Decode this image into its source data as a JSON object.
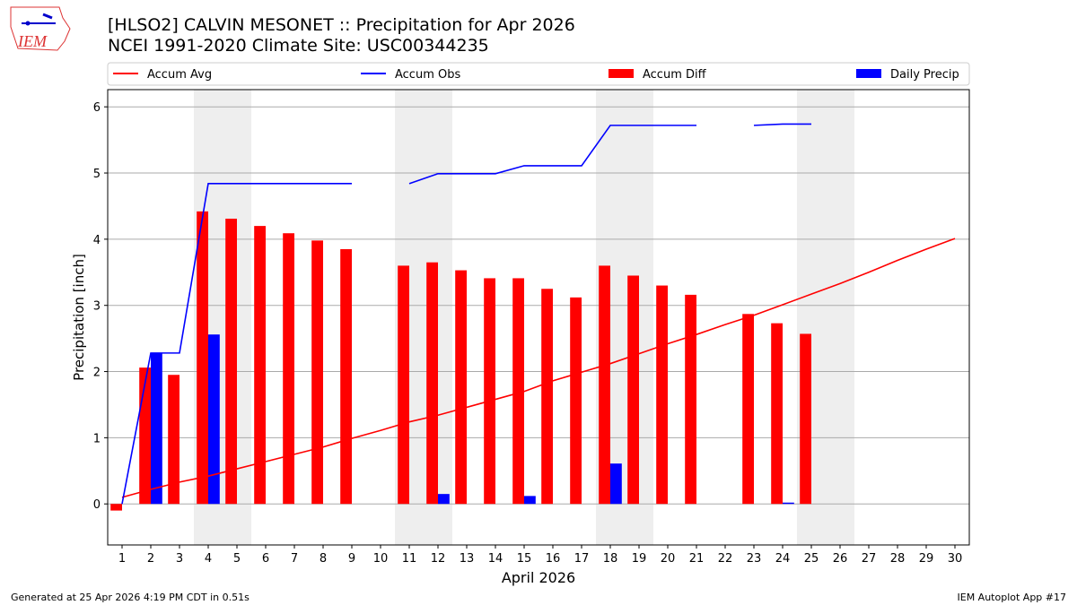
{
  "title": "[HLSO2] CALVIN MESONET :: Precipitation for Apr 2026",
  "subtitle": "NCEI 1991-2020 Climate Site: USC00344235",
  "logo_text": "IEM",
  "footer_left": "Generated at 25 Apr 2026 4:19 PM CDT in 0.51s",
  "footer_right": "IEM Autoplot App #17",
  "chart_data": {
    "type": "bar",
    "xlabel": "April 2026",
    "ylabel": "Precipitation [inch]",
    "xlim": [
      0.5,
      30.5
    ],
    "ylim": [
      -0.62,
      6.26
    ],
    "yticks": [
      0,
      1,
      2,
      3,
      4,
      5,
      6
    ],
    "x": [
      1,
      2,
      3,
      4,
      5,
      6,
      7,
      8,
      9,
      10,
      11,
      12,
      13,
      14,
      15,
      16,
      17,
      18,
      19,
      20,
      21,
      22,
      23,
      24,
      25,
      26,
      27,
      28,
      29,
      30
    ],
    "weekend_shading_days": [
      4,
      5,
      11,
      12,
      18,
      19,
      25,
      26
    ],
    "grid": "horizontal",
    "legend_placement": "top",
    "series": [
      {
        "name": "Accum Avg",
        "kind": "line",
        "color": "#ff0000",
        "values": [
          0.1,
          0.22,
          0.33,
          0.42,
          0.53,
          0.64,
          0.75,
          0.86,
          0.99,
          1.11,
          1.24,
          1.34,
          1.46,
          1.58,
          1.7,
          1.86,
          1.99,
          2.12,
          2.27,
          2.42,
          2.56,
          2.71,
          2.85,
          3.01,
          3.17,
          3.33,
          3.5,
          3.68,
          3.85,
          4.01
        ]
      },
      {
        "name": "Accum Obs",
        "kind": "line",
        "color": "#0000ff",
        "values": [
          0.0,
          2.28,
          2.28,
          4.84,
          4.84,
          4.84,
          4.84,
          4.84,
          4.84,
          null,
          4.84,
          4.99,
          4.99,
          4.99,
          5.11,
          5.11,
          5.11,
          5.72,
          5.72,
          5.72,
          5.72,
          null,
          5.72,
          5.74,
          5.74,
          null,
          null,
          null,
          null,
          null
        ]
      },
      {
        "name": "Accum Diff",
        "kind": "bar",
        "color": "#ff0000",
        "values": [
          -0.1,
          2.06,
          1.95,
          4.42,
          4.31,
          4.2,
          4.09,
          3.98,
          3.85,
          null,
          3.6,
          3.65,
          3.53,
          3.41,
          3.41,
          3.25,
          3.12,
          3.6,
          3.45,
          3.3,
          3.16,
          null,
          2.87,
          2.73,
          2.57,
          null,
          null,
          null,
          null,
          null
        ]
      },
      {
        "name": "Daily Precip",
        "kind": "bar",
        "color": "#0000ff",
        "values": [
          0,
          2.28,
          0,
          2.56,
          0,
          0,
          0,
          0,
          0,
          null,
          0,
          0.15,
          0,
          0,
          0.12,
          0,
          0,
          0.61,
          0,
          0,
          0,
          null,
          0,
          0.02,
          0,
          null,
          null,
          null,
          null,
          null
        ]
      }
    ]
  }
}
